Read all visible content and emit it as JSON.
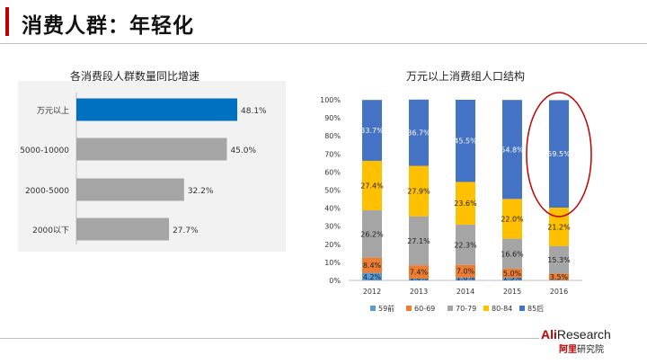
{
  "page": {
    "title": "消费人群：年轻化"
  },
  "brand": {
    "main_ali": "Ali",
    "main_rest": "Research",
    "sub_red": "阿里",
    "sub_rest": "研究院"
  },
  "colors": {
    "accent": "#c00000",
    "blue": "#0070c0",
    "gray": "#a5a5a5"
  },
  "chart_data": [
    {
      "type": "bar",
      "orientation": "horizontal",
      "title": "各消费段人群数量同比增速",
      "categories": [
        "万元以上",
        "5000-10000",
        "2000-5000",
        "2000以下"
      ],
      "values": [
        48.1,
        45.0,
        32.2,
        27.7
      ],
      "labels": [
        "48.1%",
        "45.0%",
        "32.2%",
        "27.7%"
      ],
      "highlight_index": 0,
      "xlim": [
        0,
        60
      ]
    },
    {
      "type": "bar",
      "stacked": true,
      "percent": true,
      "title": "万元以上消费组人口结构",
      "categories": [
        "2012",
        "2013",
        "2014",
        "2015",
        "2016"
      ],
      "y_ticks": [
        "0%",
        "10%",
        "20%",
        "30%",
        "40%",
        "50%",
        "60%",
        "70%",
        "80%",
        "90%",
        "100%"
      ],
      "ylim": [
        0,
        100
      ],
      "legend_position": "bottom",
      "series": [
        {
          "name": "59前",
          "color": "#5b9bd5",
          "values": [
            4.2,
            1.0,
            1.6,
            1.5,
            0.3
          ],
          "labels": [
            "4.2%",
            "1.0%",
            "1.6%",
            "1.5%",
            "0.3%"
          ]
        },
        {
          "name": "60-69",
          "color": "#ed7d31",
          "values": [
            8.4,
            7.4,
            7.0,
            5.0,
            3.5
          ],
          "labels": [
            "8.4%",
            "7.4%",
            "7.0%",
            "5.0%",
            "3.5%"
          ]
        },
        {
          "name": "70-79",
          "color": "#a5a5a5",
          "values": [
            26.2,
            27.1,
            22.3,
            16.6,
            15.3
          ],
          "labels": [
            "26.2%",
            "27.1%",
            "22.3%",
            "16.6%",
            "15.3%"
          ]
        },
        {
          "name": "80-84",
          "color": "#ffc000",
          "values": [
            27.4,
            27.9,
            23.6,
            22.0,
            21.2
          ],
          "labels": [
            "27.4%",
            "27.9%",
            "23.6%",
            "22.0%",
            "21.2%"
          ]
        },
        {
          "name": "85后",
          "color": "#4472c4",
          "values": [
            33.7,
            36.7,
            45.5,
            54.8,
            59.5
          ],
          "labels": [
            "33.7%",
            "36.7%",
            "45.5%",
            "54.8%",
            "59.5%"
          ]
        }
      ],
      "highlight_category": "2016"
    }
  ]
}
